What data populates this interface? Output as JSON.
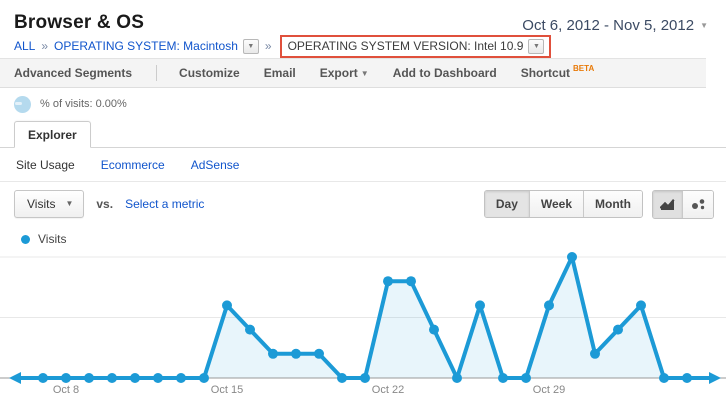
{
  "colors": {
    "accent": "#1c9ad6",
    "link": "#1155cc",
    "beta_orange": "#e87a09",
    "annotation_red": "#e0503c"
  },
  "icons": {
    "chevron_down": "▼"
  },
  "header": {
    "title": "Browser & OS",
    "date_range": "Oct 6, 2012 - Nov 5, 2012"
  },
  "breadcrumb": {
    "separator": "»",
    "all_label": "ALL",
    "level1": "OPERATING SYSTEM: Macintosh",
    "level2": "OPERATING SYSTEM VERSION: Intel 10.9"
  },
  "toolbar": {
    "items": [
      "Advanced Segments",
      "Customize",
      "Email",
      "Export",
      "Add to Dashboard",
      "Shortcut"
    ],
    "beta_label": "BETA"
  },
  "stats": {
    "percent_of_visits": "% of visits: 0.00%"
  },
  "tabs": {
    "explorer": "Explorer"
  },
  "subnav": {
    "site_usage": "Site Usage",
    "ecommerce": "Ecommerce",
    "adsense": "AdSense"
  },
  "controls": {
    "metric": "Visits",
    "vs_label": "vs.",
    "select_metric": "Select a metric",
    "granularity": [
      "Day",
      "Week",
      "Month"
    ],
    "active_granularity": "Day"
  },
  "legend": {
    "label": "Visits",
    "color": "#1c9ad6"
  },
  "chart_data": {
    "type": "line",
    "title": "Visits by day",
    "x": [
      "Oct 6",
      "Oct 7",
      "Oct 8",
      "Oct 9",
      "Oct 10",
      "Oct 11",
      "Oct 12",
      "Oct 13",
      "Oct 14",
      "Oct 15",
      "Oct 16",
      "Oct 17",
      "Oct 18",
      "Oct 19",
      "Oct 20",
      "Oct 21",
      "Oct 22",
      "Oct 23",
      "Oct 24",
      "Oct 25",
      "Oct 26",
      "Oct 27",
      "Oct 28",
      "Oct 29",
      "Oct 30",
      "Oct 31",
      "Nov 1",
      "Nov 2",
      "Nov 3",
      "Nov 4",
      "Nov 5"
    ],
    "series": [
      {
        "name": "Visits",
        "color": "#1c9ad6",
        "values": [
          0,
          0,
          0,
          0,
          0,
          0,
          0,
          0,
          0,
          3,
          2,
          1,
          1,
          1,
          0,
          0,
          4,
          4,
          2,
          0,
          3,
          0,
          0,
          3,
          5,
          1,
          2,
          3,
          0,
          0,
          0
        ]
      }
    ],
    "ylim": [
      0,
      5
    ],
    "gridline_values": [
      2.5,
      5
    ],
    "grid": true,
    "legend_position": "top-left",
    "xlabel": "",
    "ylabel": "",
    "tick_labels": [
      {
        "label": "Oct 8",
        "index": 2
      },
      {
        "label": "Oct 15",
        "index": 9
      },
      {
        "label": "Oct 22",
        "index": 16
      },
      {
        "label": "Oct 29",
        "index": 23
      }
    ],
    "area_fill": "rgba(28,154,214,0.10)",
    "axis_color": "#999999",
    "grid_color": "#e8e8e8",
    "tick_color": "#888888"
  }
}
